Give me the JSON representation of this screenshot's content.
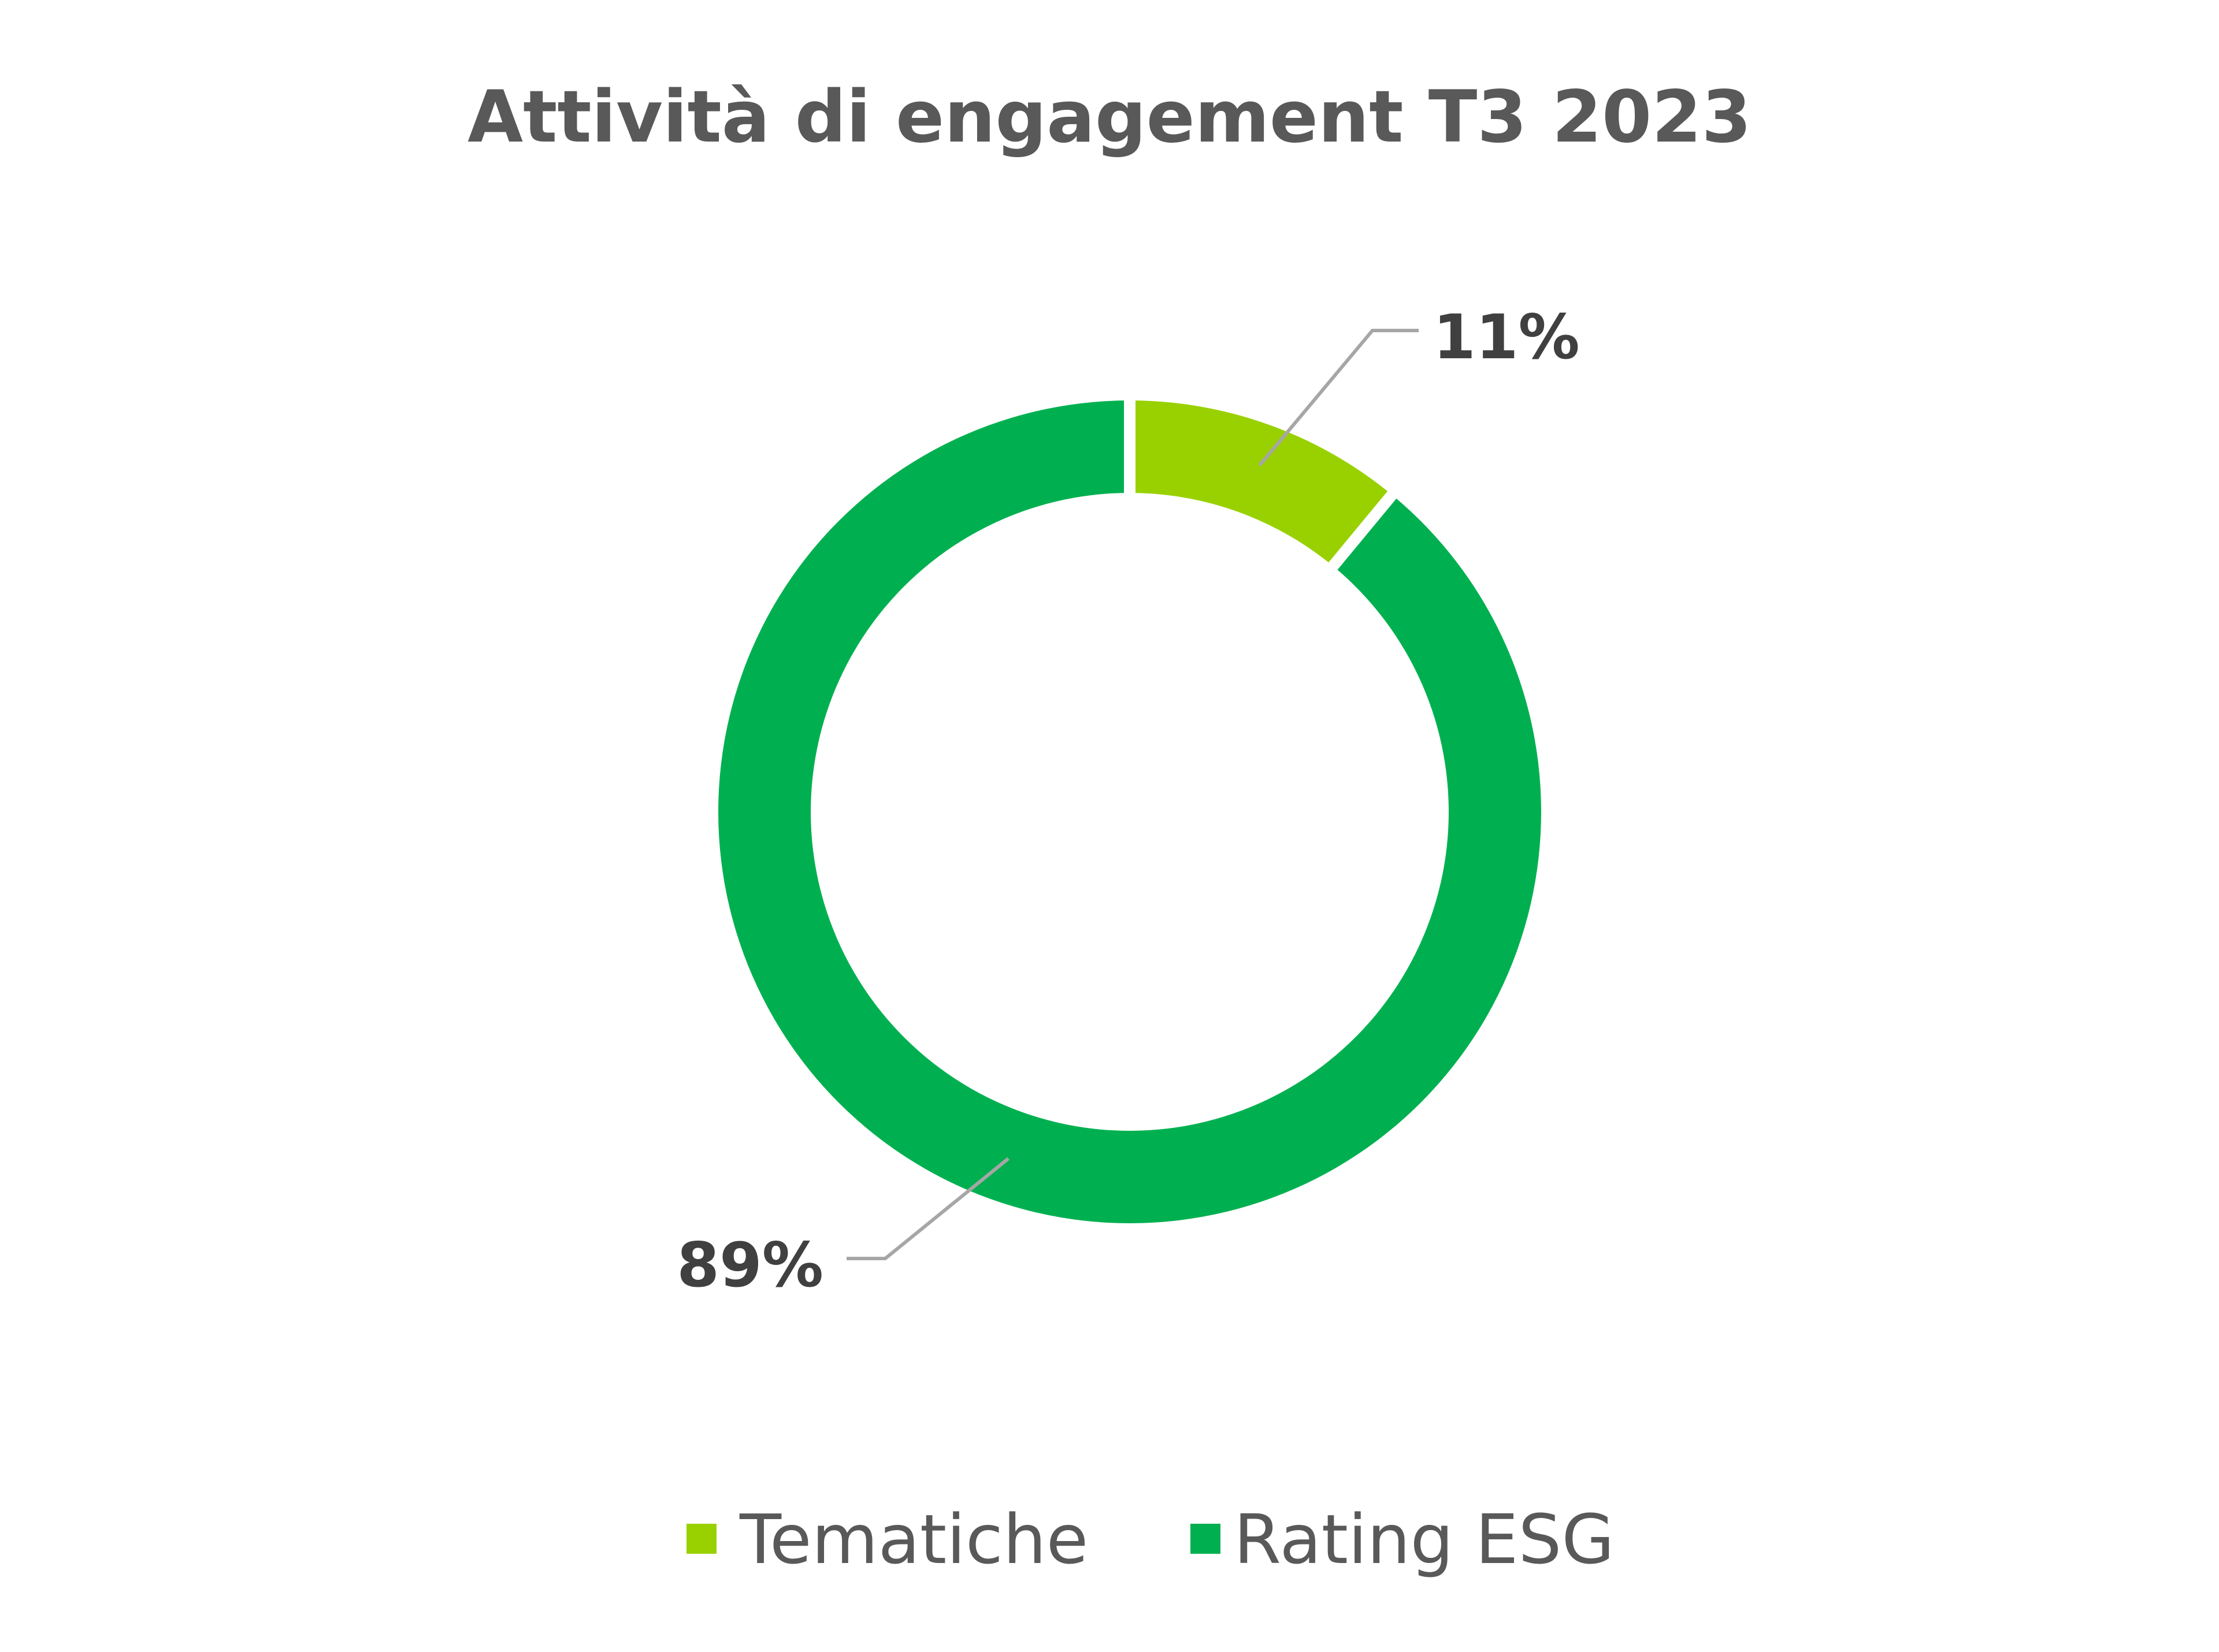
{
  "chart_data": {
    "type": "pie",
    "variant": "donut",
    "title": "Attività di engagement T3 2023",
    "categories": [
      "Tematiche",
      "Rating ESG"
    ],
    "values": [
      11,
      89
    ],
    "unit": "%",
    "data_labels": [
      "11%",
      "89%"
    ],
    "colors": [
      "#99D100",
      "#00B050"
    ],
    "legend": {
      "position": "bottom",
      "entries": [
        "Tematiche",
        "Rating ESG"
      ]
    },
    "title_color": "#595959",
    "label_color": "#404040",
    "leader_line_color": "#A6A6A6"
  }
}
